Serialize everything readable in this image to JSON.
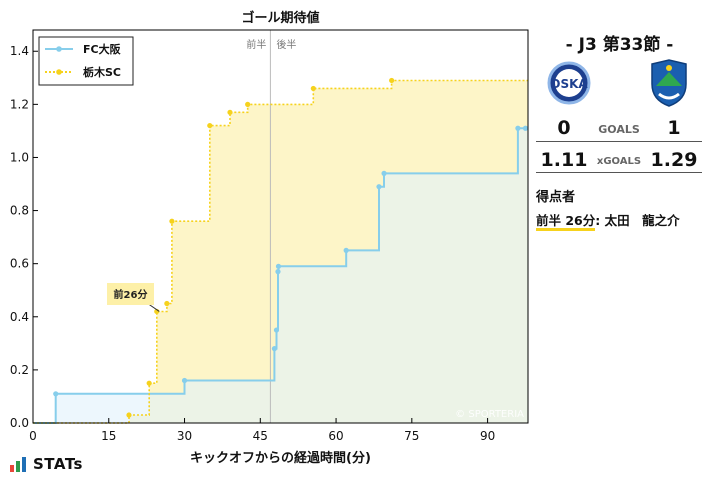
{
  "chart_data": {
    "type": "line",
    "title": "ゴール期待値",
    "xlabel": "キックオフからの経過時間(分)",
    "ylabel": "",
    "xlim": [
      0,
      98
    ],
    "ylim": [
      0,
      1.48
    ],
    "xticks": [
      0,
      15,
      30,
      45,
      60,
      75,
      90
    ],
    "yticks": [
      0.0,
      0.2,
      0.4,
      0.6,
      0.8,
      1.0,
      1.2,
      1.4
    ],
    "halftime_x": 47,
    "halftime_labels": [
      "前半",
      "後半"
    ],
    "legend_position": "top-left",
    "watermark": "© SPORTERIA",
    "series": [
      {
        "name": "FC大阪",
        "color": "#87ceeb",
        "fill": "#e1f2fb",
        "steps": [
          [
            0,
            0
          ],
          [
            4.5,
            0.11
          ],
          [
            7,
            0.11
          ],
          [
            30,
            0.16
          ],
          [
            47.8,
            0.28
          ],
          [
            48.2,
            0.35
          ],
          [
            48.5,
            0.57
          ],
          [
            48.6,
            0.59
          ],
          [
            62,
            0.65
          ],
          [
            68.5,
            0.89
          ],
          [
            69.5,
            0.94
          ],
          [
            96,
            1.11
          ],
          [
            98,
            1.11
          ]
        ],
        "markers": [
          [
            4.5,
            0.11
          ],
          [
            30,
            0.16
          ],
          [
            47.8,
            0.28
          ],
          [
            48.2,
            0.35
          ],
          [
            48.5,
            0.57
          ],
          [
            48.6,
            0.59
          ],
          [
            62,
            0.65
          ],
          [
            68.5,
            0.89
          ],
          [
            69.5,
            0.94
          ],
          [
            96,
            1.11
          ],
          [
            97.5,
            1.11
          ]
        ]
      },
      {
        "name": "栃木SC",
        "color": "#f6d21d",
        "fill": "#fdf5c8",
        "steps": [
          [
            0,
            0
          ],
          [
            19,
            0.03
          ],
          [
            23,
            0.15
          ],
          [
            24.5,
            0.42
          ],
          [
            25,
            0.42
          ],
          [
            26.5,
            0.45
          ],
          [
            27.5,
            0.76
          ],
          [
            35,
            1.12
          ],
          [
            39,
            1.17
          ],
          [
            42.5,
            1.2
          ],
          [
            55.5,
            1.26
          ],
          [
            71,
            1.29
          ],
          [
            98,
            1.29
          ]
        ],
        "markers": [
          [
            19,
            0.03
          ],
          [
            23,
            0.15
          ],
          [
            24.5,
            0.42
          ],
          [
            26.5,
            0.45
          ],
          [
            27.5,
            0.76
          ],
          [
            35,
            1.12
          ],
          [
            39,
            1.17
          ],
          [
            42.5,
            1.2
          ],
          [
            55.5,
            1.26
          ],
          [
            71,
            1.29
          ]
        ]
      }
    ],
    "annotations": [
      {
        "text": "前26分",
        "x": 25,
        "y": 0.42,
        "series": "栃木SC"
      }
    ]
  },
  "match": {
    "title": "-  J3 第33節  -",
    "home": {
      "name": "FC大阪",
      "goals": "0",
      "xg": "1.11"
    },
    "away": {
      "name": "栃木SC",
      "goals": "1",
      "xg": "1.29"
    },
    "goals_label": "GOALS",
    "xgoals_label": "xGOALS",
    "scorers_title": "得点者",
    "scorers": [
      {
        "time": "前半 26分",
        "name": "太田　龍之介"
      }
    ]
  },
  "branding": {
    "logo_text": "STATs",
    "logo_bar_colors": [
      "#e8463a",
      "#2e9b4b",
      "#1f6fb5"
    ]
  }
}
